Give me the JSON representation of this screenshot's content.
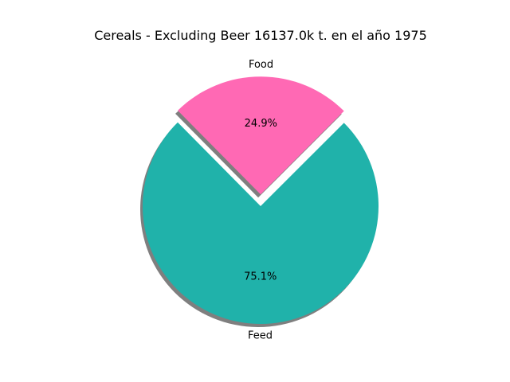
{
  "chart_data": {
    "type": "pie",
    "title": "Cereals - Excluding Beer 16137.0k t. en el año 1975",
    "slices": [
      {
        "label": "Food",
        "percent": 24.9,
        "percent_label": "24.9%",
        "color": "#ff69b4",
        "exploded": true
      },
      {
        "label": "Feed",
        "percent": 75.1,
        "percent_label": "75.1%",
        "color": "#20b2aa",
        "exploded": false
      }
    ],
    "shadow": true,
    "legend": "none"
  }
}
